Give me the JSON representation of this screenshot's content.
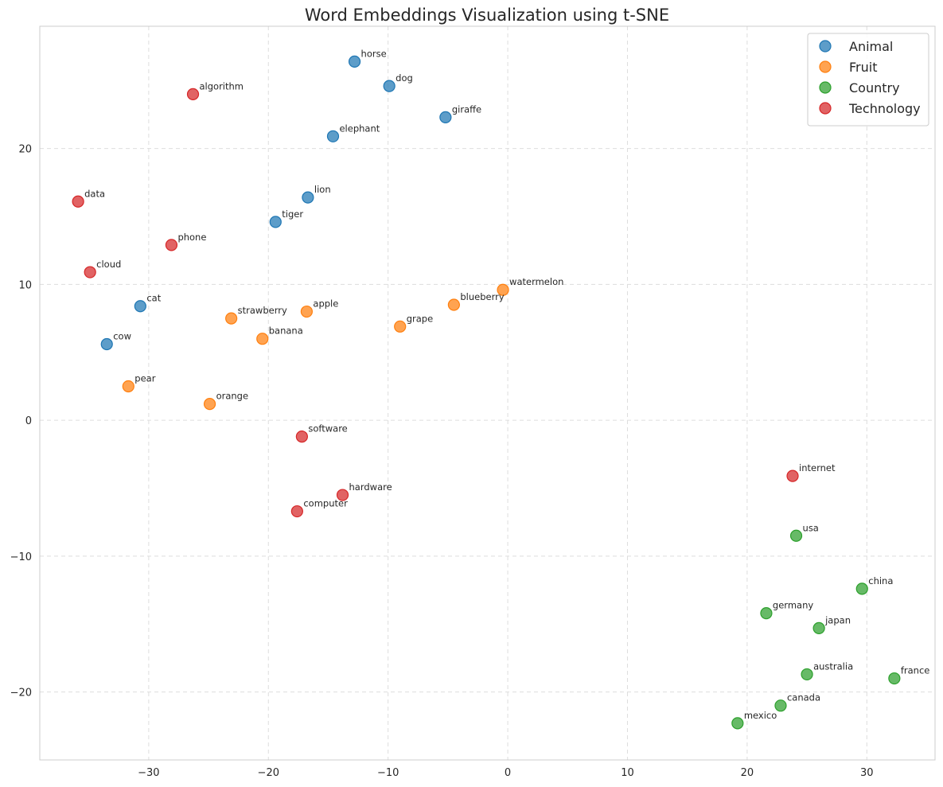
{
  "chart_data": {
    "type": "scatter",
    "title": "Word Embeddings Visualization using t-SNE",
    "xlabel": "",
    "ylabel": "",
    "xlim": [
      -39.1,
      35.7
    ],
    "ylim": [
      -25,
      29
    ],
    "x_ticks": [
      -30,
      -20,
      -10,
      0,
      10,
      20,
      30
    ],
    "y_ticks": [
      -20,
      -10,
      0,
      10,
      20
    ],
    "x_tick_labels": [
      "−30",
      "−20",
      "−10",
      "0",
      "10",
      "20",
      "30"
    ],
    "y_tick_labels": [
      "−20",
      "−10",
      "0",
      "10",
      "20"
    ],
    "grid": true,
    "legend_position": "top-right",
    "series": [
      {
        "name": "Animal",
        "color": "#1f77b4",
        "points": [
          {
            "label": "horse",
            "x": -12.8,
            "y": 26.4
          },
          {
            "label": "dog",
            "x": -9.9,
            "y": 24.6
          },
          {
            "label": "giraffe",
            "x": -5.2,
            "y": 22.3
          },
          {
            "label": "elephant",
            "x": -14.6,
            "y": 20.9
          },
          {
            "label": "lion",
            "x": -16.7,
            "y": 16.4
          },
          {
            "label": "tiger",
            "x": -19.4,
            "y": 14.6
          },
          {
            "label": "cat",
            "x": -30.7,
            "y": 8.4
          },
          {
            "label": "cow",
            "x": -33.5,
            "y": 5.6
          }
        ]
      },
      {
        "name": "Fruit",
        "color": "#ff7f0e",
        "points": [
          {
            "label": "watermelon",
            "x": -0.4,
            "y": 9.6
          },
          {
            "label": "blueberry",
            "x": -4.5,
            "y": 8.5
          },
          {
            "label": "apple",
            "x": -16.8,
            "y": 8.0
          },
          {
            "label": "strawberry",
            "x": -23.1,
            "y": 7.5
          },
          {
            "label": "grape",
            "x": -9.0,
            "y": 6.9
          },
          {
            "label": "banana",
            "x": -20.5,
            "y": 6.0
          },
          {
            "label": "pear",
            "x": -31.7,
            "y": 2.5
          },
          {
            "label": "orange",
            "x": -24.9,
            "y": 1.2
          }
        ]
      },
      {
        "name": "Country",
        "color": "#2ca02c",
        "points": [
          {
            "label": "usa",
            "x": 24.1,
            "y": -8.5
          },
          {
            "label": "china",
            "x": 29.6,
            "y": -12.4
          },
          {
            "label": "germany",
            "x": 21.6,
            "y": -14.2
          },
          {
            "label": "japan",
            "x": 26.0,
            "y": -15.3
          },
          {
            "label": "australia",
            "x": 25.0,
            "y": -18.7
          },
          {
            "label": "france",
            "x": 32.3,
            "y": -19.0
          },
          {
            "label": "canada",
            "x": 22.8,
            "y": -21.0
          },
          {
            "label": "mexico",
            "x": 19.2,
            "y": -22.3
          }
        ]
      },
      {
        "name": "Technology",
        "color": "#d62728",
        "points": [
          {
            "label": "algorithm",
            "x": -26.3,
            "y": 24.0
          },
          {
            "label": "data",
            "x": -35.9,
            "y": 16.1
          },
          {
            "label": "phone",
            "x": -28.1,
            "y": 12.9
          },
          {
            "label": "cloud",
            "x": -34.9,
            "y": 10.9
          },
          {
            "label": "software",
            "x": -17.2,
            "y": -1.2
          },
          {
            "label": "internet",
            "x": 23.8,
            "y": -4.1
          },
          {
            "label": "hardware",
            "x": -13.8,
            "y": -5.5
          },
          {
            "label": "computer",
            "x": -17.6,
            "y": -6.7
          }
        ]
      }
    ]
  }
}
